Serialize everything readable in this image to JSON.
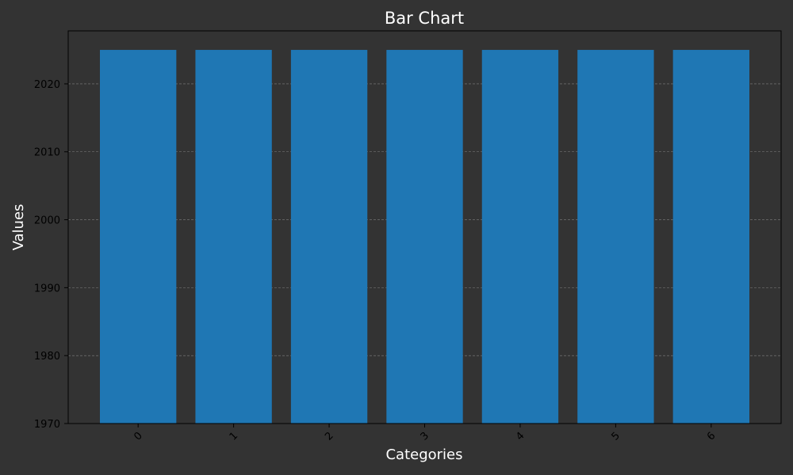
{
  "chart_data": {
    "type": "bar",
    "title": "Bar Chart",
    "xlabel": "Categories",
    "ylabel": "Values",
    "categories": [
      "0",
      "1",
      "2",
      "3",
      "4",
      "5",
      "6"
    ],
    "values": [
      2025,
      2025,
      2025,
      2025,
      2025,
      2025,
      2025
    ],
    "ylim": [
      1970,
      2027.8
    ],
    "yticks": [
      "1970",
      "1980",
      "1990",
      "2000",
      "2010",
      "2020"
    ],
    "grid": "horizontal dashed",
    "colors": {
      "background": "#333333",
      "bar": "#1f77b4",
      "grid": "#808080",
      "tick_text": "#000000",
      "title_text": "#ffffff"
    }
  }
}
